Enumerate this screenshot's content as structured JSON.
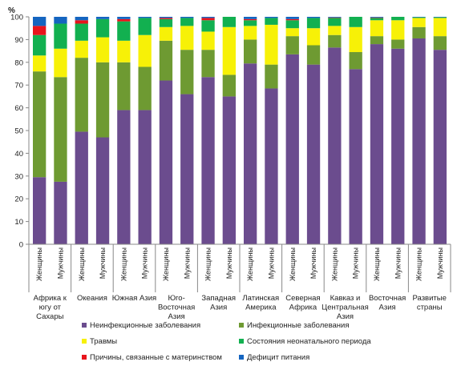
{
  "chart_data": {
    "type": "bar",
    "stacked": true,
    "ylabel": "%",
    "ylim": [
      0,
      100
    ],
    "yticks": [
      0,
      10,
      20,
      30,
      40,
      50,
      60,
      70,
      80,
      90,
      100
    ],
    "grid": false,
    "legend_position": "bottom",
    "sub_categories": [
      "Женщины",
      "Мужчины"
    ],
    "regions": [
      {
        "label_lines": [
          "Африка к",
          "югу от",
          "Сахары"
        ]
      },
      {
        "label_lines": [
          "Океания"
        ]
      },
      {
        "label_lines": [
          "Южная Азия"
        ]
      },
      {
        "label_lines": [
          "Юго-",
          "Восточная",
          "Азия"
        ]
      },
      {
        "label_lines": [
          "Западная",
          "Азия"
        ]
      },
      {
        "label_lines": [
          "Латинская",
          "Америка"
        ]
      },
      {
        "label_lines": [
          "Северная",
          "Африка"
        ]
      },
      {
        "label_lines": [
          "Кавказ и",
          "Центральная",
          "Азия"
        ]
      },
      {
        "label_lines": [
          "Восточная",
          "Азия"
        ]
      },
      {
        "label_lines": [
          "Развитые",
          "страны"
        ]
      }
    ],
    "series": [
      {
        "name": "Неинфекционные заболевания",
        "color": "#6b4c8e",
        "values": [
          29.5,
          27.5,
          49.5,
          47,
          59,
          59,
          72,
          66,
          73.5,
          65,
          79.5,
          68.5,
          83.5,
          79,
          86.5,
          77,
          88,
          86,
          90.5,
          85.5
        ]
      },
      {
        "name": "Инфекционные заболевания",
        "color": "#6e9a32",
        "values": [
          46.5,
          46,
          32.5,
          33,
          21,
          19,
          17.5,
          19.5,
          12,
          9.5,
          10.5,
          10.5,
          8,
          8.5,
          5.5,
          7.5,
          3.5,
          4,
          5,
          6
        ]
      },
      {
        "name": "Травмы",
        "color": "#f7f107",
        "values": [
          7,
          12.5,
          7.5,
          11,
          9.5,
          14,
          6,
          10.5,
          8,
          21,
          6,
          17.5,
          3.5,
          7.5,
          4,
          11,
          7,
          8.5,
          4,
          8
        ]
      },
      {
        "name": "Состояния неонатального периода",
        "color": "#12b050",
        "values": [
          9,
          11,
          7.5,
          8,
          8.5,
          7.5,
          3.5,
          3.5,
          5,
          4.5,
          2.5,
          3,
          3.5,
          4.5,
          3.5,
          4.5,
          1,
          1.5,
          0.3,
          0.3
        ]
      },
      {
        "name": "Причины, связанные с материнством",
        "color": "#e8141c",
        "values": [
          4,
          0,
          1.5,
          0,
          1,
          0,
          0.5,
          0,
          1,
          0,
          0.5,
          0,
          0.5,
          0,
          0.2,
          0,
          0.2,
          0,
          0,
          0
        ]
      },
      {
        "name": "Дефицит питания",
        "color": "#1565c0",
        "values": [
          4,
          3,
          1.5,
          1,
          1,
          0.5,
          0.5,
          0.5,
          0.5,
          0,
          1,
          0.5,
          1,
          0.5,
          0.3,
          0,
          0.3,
          0,
          0.2,
          0.2
        ]
      }
    ]
  }
}
